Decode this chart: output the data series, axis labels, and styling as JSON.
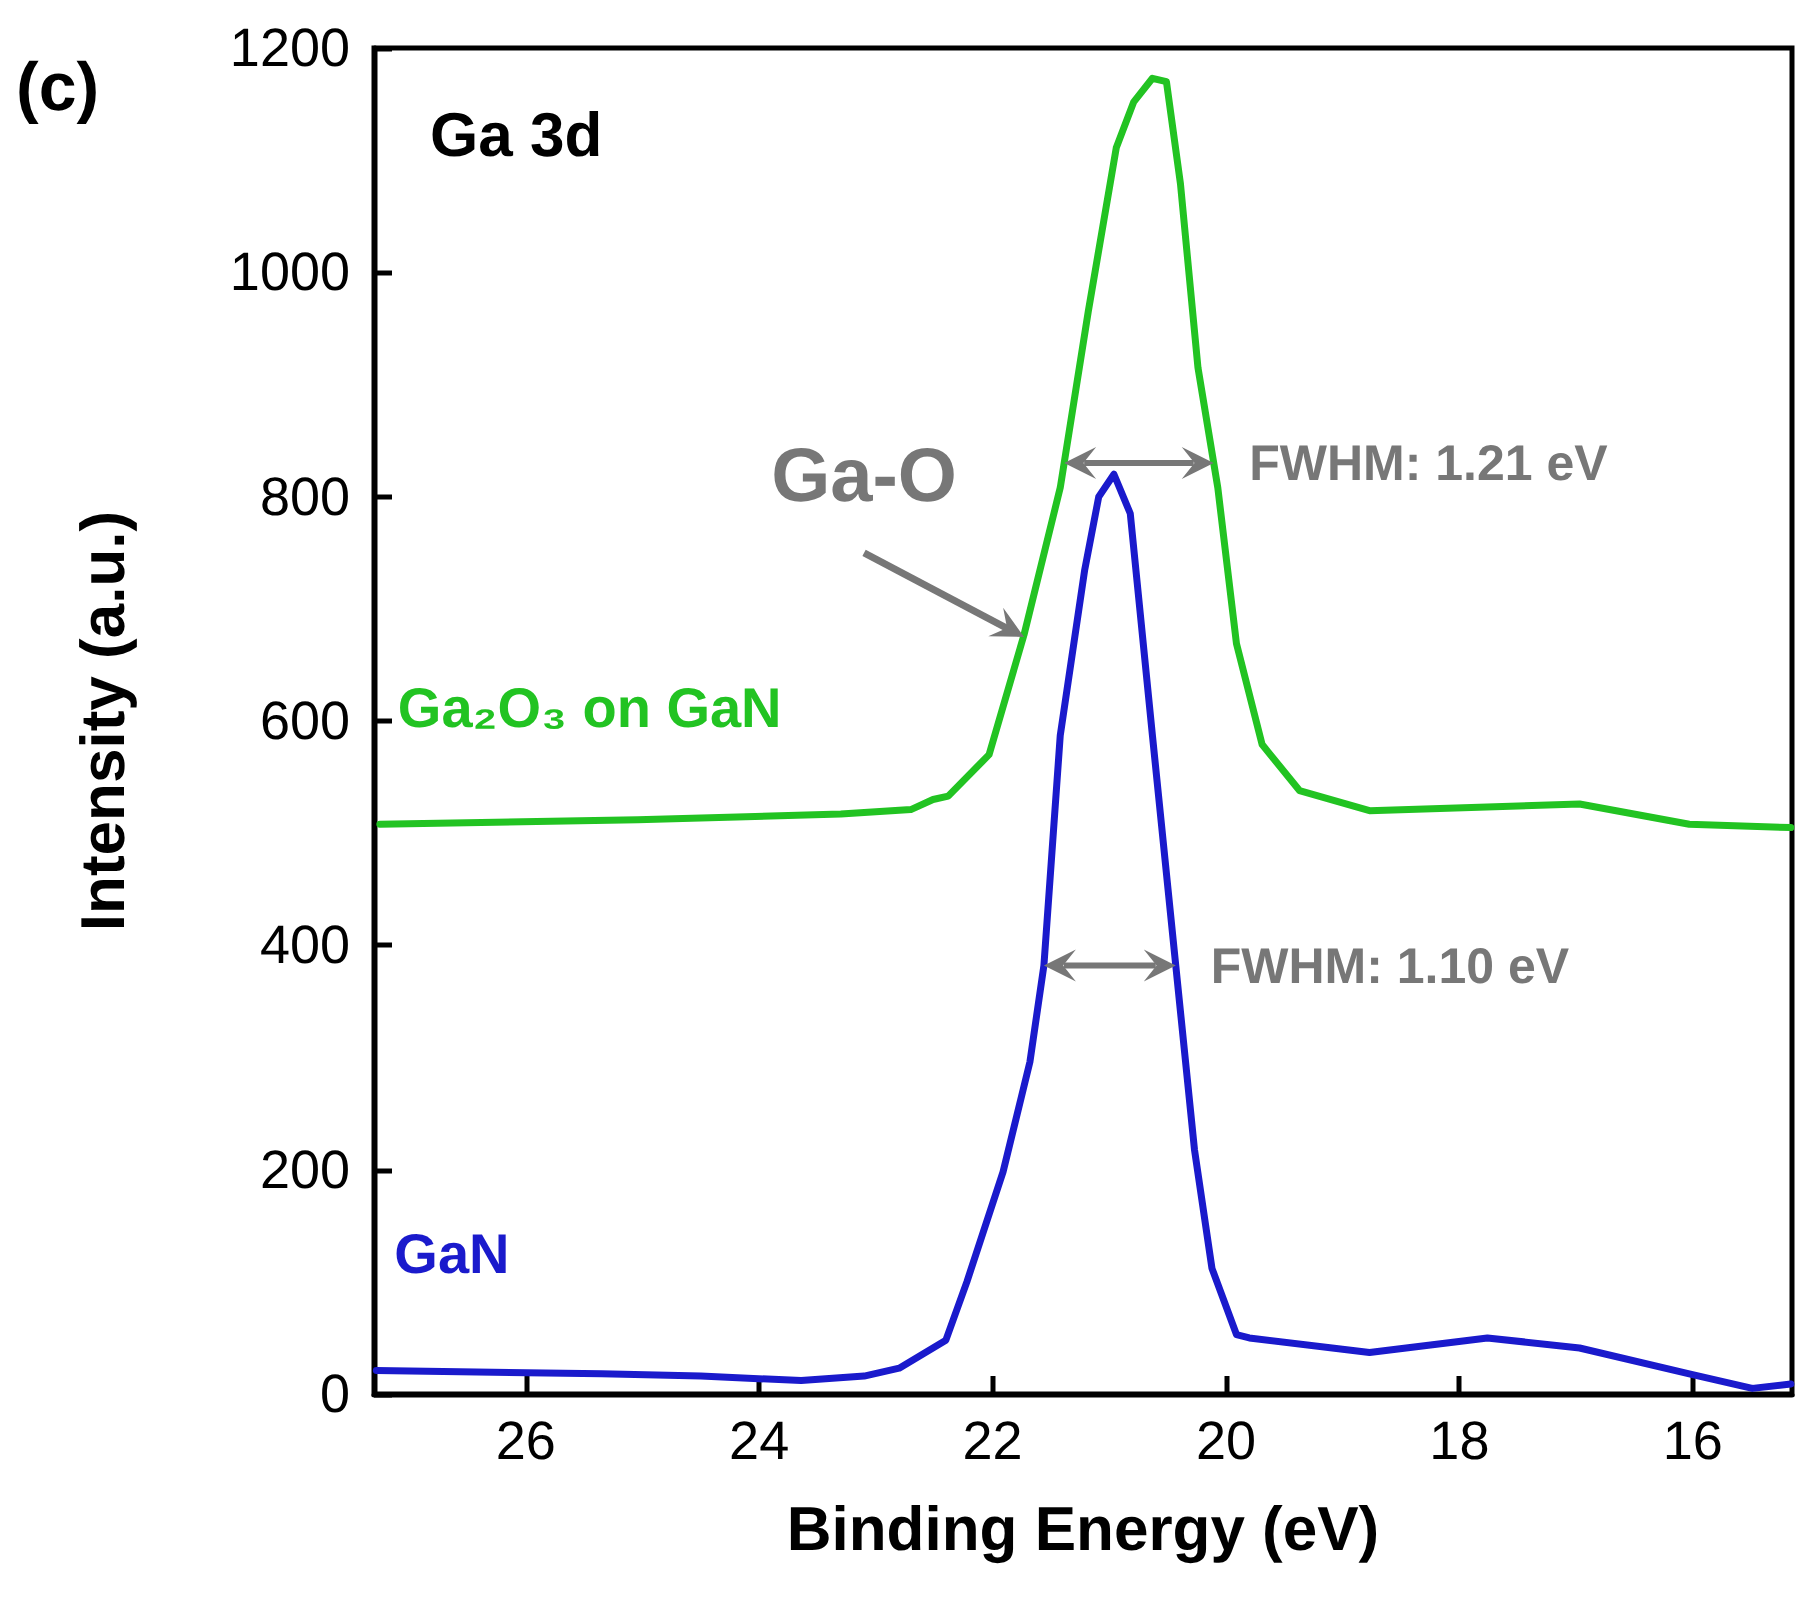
{
  "chart_data": {
    "type": "line",
    "xlabel": "Binding Energy (eV)",
    "ylabel": "Intensity (a.u.)",
    "xlim": [
      27.3,
      15.15
    ],
    "xticks": [
      26,
      24,
      22,
      20,
      18,
      16
    ],
    "ylim": [
      0,
      1200
    ],
    "yticks": [
      0,
      200,
      400,
      600,
      800,
      1000,
      1200
    ],
    "grid": false,
    "legend": false,
    "marker": "none",
    "line_style": "solid",
    "annotations": [
      "(c)",
      "Ga 3d",
      {
        "text": "Ga-O",
        "x": 21.73,
        "y": 675
      },
      {
        "text": "FWHM: 1.21 eV",
        "x": 20.04,
        "y": 830
      },
      {
        "text": "FWHM: 1.10 eV",
        "x": 20.37,
        "y": 382
      }
    ],
    "series": [
      {
        "name": "Ga₂O₃ on GaN",
        "color": "#22c322",
        "x": [
          27.25,
          25.04,
          23.3,
          22.7,
          22.51,
          22.38,
          22.03,
          21.73,
          21.42,
          21.18,
          20.94,
          20.79,
          20.63,
          20.51,
          20.39,
          20.24,
          20.07,
          19.91,
          19.69,
          19.37,
          18.77,
          16.97,
          16.03,
          15.16
        ],
        "values": [
          508,
          512,
          517,
          521,
          530,
          533,
          570,
          677,
          808,
          965,
          1111,
          1152,
          1173,
          1170,
          1079,
          915,
          808,
          669,
          579,
          538,
          520,
          526,
          508,
          505
        ]
      },
      {
        "name": "GaN",
        "color": "#1a1acc",
        "x": [
          27.28,
          25.35,
          24.5,
          23.64,
          23.1,
          22.8,
          22.4,
          22.22,
          21.91,
          21.68,
          21.56,
          21.42,
          21.21,
          21.09,
          20.96,
          20.82,
          20.63,
          20.43,
          20.27,
          20.12,
          19.91,
          19.8,
          18.77,
          17.76,
          16.97,
          16.03,
          15.49,
          15.16
        ],
        "values": [
          21,
          18,
          16,
          12,
          16,
          23,
          48,
          100,
          198,
          296,
          382,
          587,
          735,
          800,
          820,
          785,
          587,
          382,
          218,
          112,
          53,
          50,
          37,
          50,
          41,
          18,
          5,
          9
        ]
      }
    ]
  }
}
